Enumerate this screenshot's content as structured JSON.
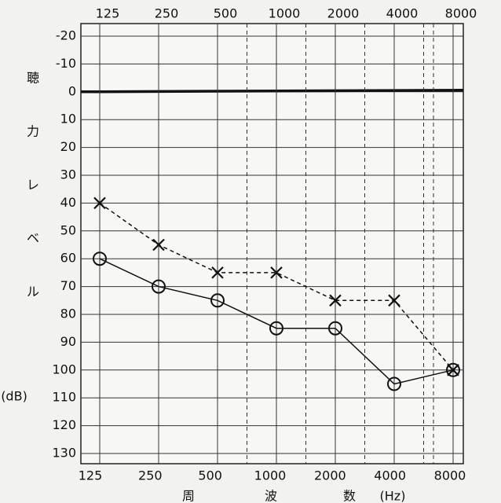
{
  "chart_data": {
    "type": "line",
    "categories": [
      "125",
      "250",
      "500",
      "1000",
      "2000",
      "4000",
      "8000"
    ],
    "ylim": [
      -20,
      130
    ],
    "yticks": [
      -20,
      -10,
      0,
      10,
      20,
      30,
      40,
      50,
      60,
      70,
      80,
      90,
      100,
      110,
      120,
      130
    ],
    "y_inverted": true,
    "zero_line": true,
    "grid": true,
    "y_label": [
      "聴",
      "力",
      "レ",
      "ベ",
      "ル",
      "(dB)"
    ],
    "x_label": [
      "周",
      "波",
      "数",
      "(Hz)"
    ],
    "series": [
      {
        "color": "#111111",
        "marker": "circle",
        "dashed": false,
        "values": [
          60,
          70,
          75,
          85,
          85,
          105,
          100
        ]
      },
      {
        "color": "#111111",
        "marker": "x",
        "dashed": true,
        "values": [
          40,
          55,
          65,
          65,
          75,
          75,
          100
        ]
      }
    ]
  }
}
